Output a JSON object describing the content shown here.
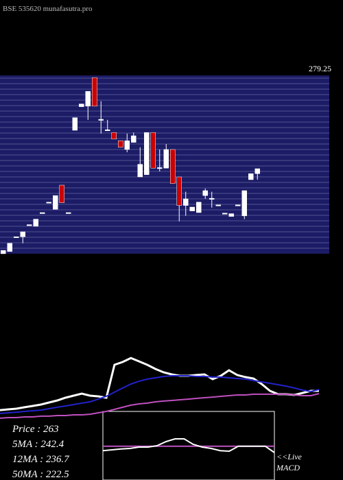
{
  "header": {
    "title": "BSE 535620 munafasutra.pro",
    "price_label": "279.25"
  },
  "chart_data": [
    {
      "type": "candlestick",
      "up_color": "#ffffff",
      "down_color": "#cc0000",
      "band_color": "#1c1c66",
      "grid": true,
      "ylim": [
        247.5,
        280
      ],
      "candles": [
        [
          247.5,
          248.1,
          247.5,
          248.1
        ],
        [
          247.9,
          249.4,
          247.9,
          249.4
        ],
        [
          250.5,
          250.6,
          250.5,
          250.6
        ],
        [
          250.6,
          251.5,
          249.4,
          251.5
        ],
        [
          252.7,
          252.8,
          252.7,
          252.8
        ],
        [
          252.5,
          253.8,
          252.5,
          253.8
        ],
        [
          254.9,
          255,
          254.9,
          255
        ],
        [
          256.8,
          256.9,
          256.8,
          256.9
        ],
        [
          255.6,
          258.1,
          255.6,
          258.1
        ],
        [
          260,
          260,
          256.8,
          256.8
        ],
        [
          254.9,
          255,
          254.9,
          255
        ],
        [
          270,
          272.3,
          270,
          272.3
        ],
        [
          274.3,
          274.8,
          274.3,
          274.8
        ],
        [
          274.4,
          277.1,
          271.9,
          277.1
        ],
        [
          279.6,
          279.6,
          274.4,
          274.4
        ],
        [
          271.9,
          275.3,
          269.4,
          272
        ],
        [
          270,
          271.9,
          270,
          270.1
        ],
        [
          269.6,
          269.6,
          268.4,
          268.4
        ],
        [
          268.1,
          268.1,
          266.9,
          266.9
        ],
        [
          266.5,
          269.4,
          266,
          268.1
        ],
        [
          267.8,
          269.6,
          267.8,
          269
        ],
        [
          261.5,
          266.9,
          261.5,
          263.8
        ],
        [
          261.9,
          269.6,
          261.9,
          269.6
        ],
        [
          269.6,
          269.6,
          263.1,
          263.1
        ],
        [
          263.1,
          266.5,
          262.5,
          263.2
        ],
        [
          263.1,
          267.5,
          263.1,
          266.5
        ],
        [
          266.5,
          266.5,
          260.3,
          260.3
        ],
        [
          261.5,
          261.5,
          253.4,
          256.3
        ],
        [
          256.3,
          258.8,
          254.4,
          257.5
        ],
        [
          255.3,
          256,
          255.3,
          256
        ],
        [
          255,
          256.9,
          255,
          256.9
        ],
        [
          258.1,
          259.4,
          257.5,
          259
        ],
        [
          257.5,
          258.8,
          255.9,
          257.6
        ],
        [
          256.3,
          256.4,
          256.3,
          256.4
        ],
        [
          254.8,
          254.9,
          254.8,
          254.9
        ],
        [
          254.3,
          254.8,
          254.3,
          254.8
        ],
        [
          256.3,
          256.4,
          256.3,
          256.4
        ],
        [
          254.4,
          259,
          253.8,
          259
        ],
        [
          261,
          262.1,
          261,
          262.1
        ],
        [
          262.1,
          263,
          261,
          263
        ]
      ]
    },
    {
      "type": "line",
      "ylim": [
        200,
        260
      ],
      "series": [
        {
          "color": "#ffffff",
          "values": [
            210.7,
            211.4,
            212,
            213.3,
            214.5,
            215.8,
            217.7,
            219.6,
            222.1,
            224,
            225.9,
            224,
            223.4,
            222.1,
            252.4,
            255,
            258.7,
            255.6,
            252.4,
            248.6,
            245.5,
            243.6,
            242.3,
            242.3,
            243,
            243.6,
            239.2,
            242.3,
            247.4,
            243,
            241.1,
            239.8,
            234.7,
            228.4,
            225.3,
            225.3,
            224.6,
            226.5,
            228.4,
            228.4
          ]
        },
        {
          "color": "#2222cc",
          "values": [
            207.6,
            208.2,
            208.8,
            209.5,
            210.1,
            210.7,
            212,
            213.3,
            214.5,
            215.8,
            217.1,
            218.3,
            220.8,
            223.4,
            227.2,
            231,
            234.7,
            237.3,
            239.2,
            240.4,
            241.7,
            242.3,
            242.3,
            242.3,
            241.7,
            241.7,
            241.1,
            241.1,
            240.4,
            239.8,
            239.2,
            237.9,
            236.6,
            235.4,
            234.1,
            232.8,
            231,
            229.1,
            227.8,
            229.7
          ]
        },
        {
          "color": "#c050c0",
          "values": [
            203.2,
            203.8,
            203.8,
            204.4,
            204.4,
            205.1,
            205.1,
            205.7,
            205.7,
            206.3,
            206.3,
            206.9,
            208.2,
            209.5,
            211.4,
            213.3,
            215.2,
            216.4,
            217.1,
            218.3,
            219,
            219.6,
            220.2,
            220.8,
            221.5,
            222.1,
            222.7,
            223.4,
            224,
            224.6,
            224.6,
            225.3,
            225.3,
            225.3,
            225.3,
            225.3,
            224.6,
            224,
            224,
            225.9
          ]
        }
      ]
    },
    {
      "type": "macd",
      "ylim": [
        -1.25,
        1.25
      ],
      "series": [
        {
          "color": "#c050c0",
          "values": [
            -0.02,
            -0.02,
            -0.02,
            -0.02,
            -0.02,
            -0.02,
            -0.02,
            -0.02,
            -0.02,
            -0.02,
            -0.02,
            -0.02,
            -0.02,
            -0.02,
            -0.02,
            -0.02,
            -0.02,
            -0.02,
            -0.02,
            -0.02
          ]
        },
        {
          "color": "#ffffff",
          "values": [
            -0.18,
            -0.15,
            -0.12,
            -0.1,
            -0.05,
            -0.05,
            0,
            0.15,
            0.25,
            0.25,
            0.05,
            -0.05,
            -0.1,
            -0.18,
            -0.2,
            -0.02,
            -0.02,
            -0.02,
            -0.02,
            -0.25
          ]
        }
      ]
    }
  ],
  "legend": [
    "Price  : 263",
    "5MA : 242.4",
    "12MA : 236.7",
    "50MA : 222.5"
  ],
  "live": "<<Live",
  "macd_label": "MACD"
}
